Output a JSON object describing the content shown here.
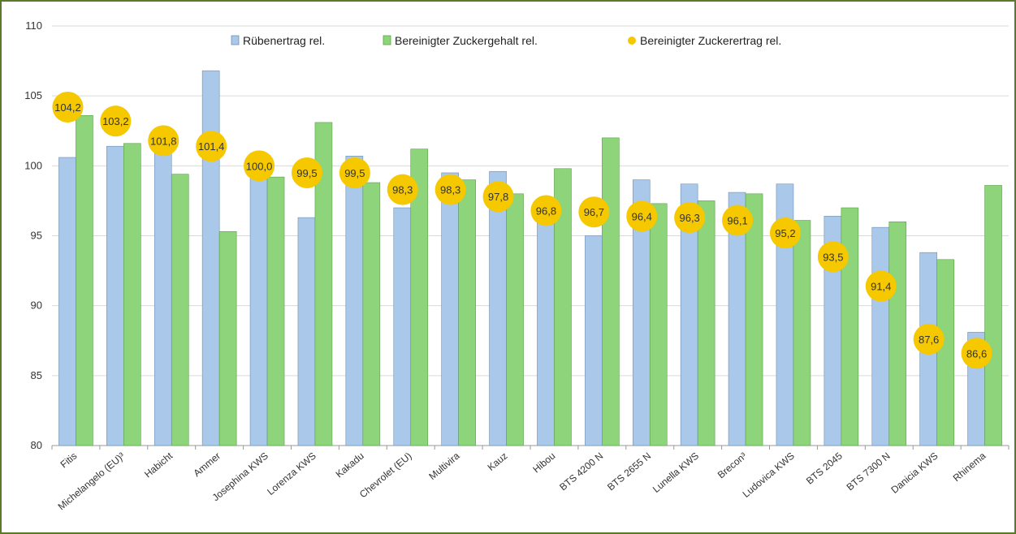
{
  "chart_data": {
    "type": "bar",
    "ylim": [
      80,
      110
    ],
    "yticks": [
      80,
      85,
      90,
      95,
      100,
      105,
      110
    ],
    "grid": true,
    "legend_position": "top",
    "categories": [
      "Fitis",
      "Michelangelo (EU)³",
      "Habicht",
      "Ammer",
      "Josephina KWS",
      "Lorenza KWS",
      "Kakadu",
      "Chevrolet (EU)",
      "Multivira",
      "Kauz",
      "Hibou",
      "BTS 4200 N",
      "BTS 2655 N",
      "Lunella KWS",
      "Brecon³",
      "Ludovica KWS",
      "BTS 2045",
      "BTS 7300 N",
      "Danicia KWS",
      "Rhinema"
    ],
    "series": [
      {
        "name": "Rübenertrag rel.",
        "kind": "bar",
        "color": "#a9c8ea",
        "values": [
          100.6,
          101.4,
          101.8,
          106.8,
          100.9,
          96.3,
          100.7,
          97.0,
          99.5,
          99.6,
          96.8,
          95.0,
          99.0,
          98.7,
          98.1,
          98.7,
          96.4,
          95.6,
          93.8,
          88.1
        ]
      },
      {
        "name": "Bereinigter Zuckergehalt rel.",
        "kind": "bar",
        "color": "#8ed47a",
        "values": [
          103.6,
          101.6,
          99.4,
          95.3,
          99.2,
          103.1,
          98.8,
          101.2,
          99.0,
          98.0,
          99.8,
          102.0,
          97.3,
          97.5,
          98.0,
          96.1,
          97.0,
          96.0,
          93.3,
          98.6
        ]
      },
      {
        "name": "Bereinigter Zuckerertrag rel.",
        "kind": "point",
        "color": "#f5c800",
        "values": [
          104.2,
          103.2,
          101.8,
          101.4,
          100.0,
          99.5,
          99.5,
          98.3,
          98.3,
          97.8,
          96.8,
          96.7,
          96.4,
          96.3,
          96.1,
          95.2,
          93.5,
          91.4,
          87.6,
          86.6
        ],
        "labels": [
          "104,2",
          "103,2",
          "101,8",
          "101,4",
          "100,0",
          "99,5",
          "99,5",
          "98,3",
          "98,3",
          "97,8",
          "96,8",
          "96,7",
          "96,4",
          "96,3",
          "96,1",
          "95,2",
          "93,5",
          "91,4",
          "87,6",
          "86,6"
        ]
      }
    ]
  }
}
